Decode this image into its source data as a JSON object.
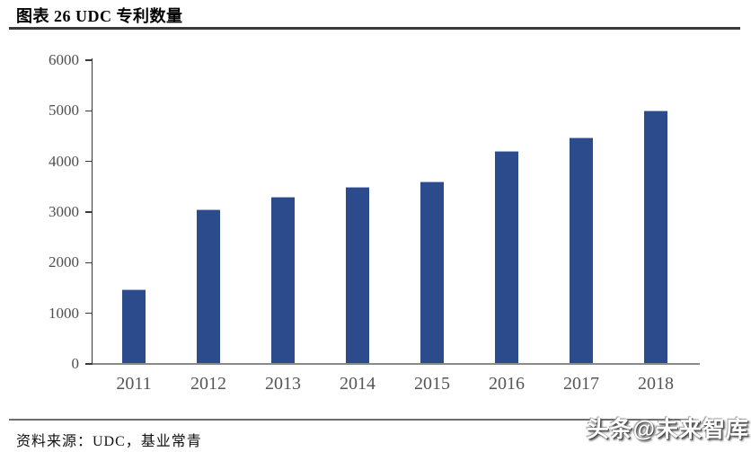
{
  "header": {
    "title": "图表 26 UDC 专利数量"
  },
  "footer": {
    "source": "资料来源：UDC，基业常青",
    "watermark": "头条@未来智库"
  },
  "colors": {
    "bar": "#2B4B8C",
    "axis": "#3a3a3a",
    "baseline": "#8a8a8a",
    "y_label": "#4f4f4f",
    "x_label": "#565656"
  },
  "chart_data": {
    "type": "bar",
    "title": "图表 26 UDC 专利数量",
    "categories": [
      "2011",
      "2012",
      "2013",
      "2014",
      "2015",
      "2016",
      "2017",
      "2018"
    ],
    "values": [
      1470,
      3050,
      3300,
      3500,
      3600,
      4200,
      4480,
      5000
    ],
    "xlabel": "",
    "ylabel": "",
    "ylim": [
      0,
      6000
    ],
    "yticks": [
      0,
      1000,
      2000,
      3000,
      4000,
      5000,
      6000
    ],
    "grid": false,
    "legend": null
  }
}
